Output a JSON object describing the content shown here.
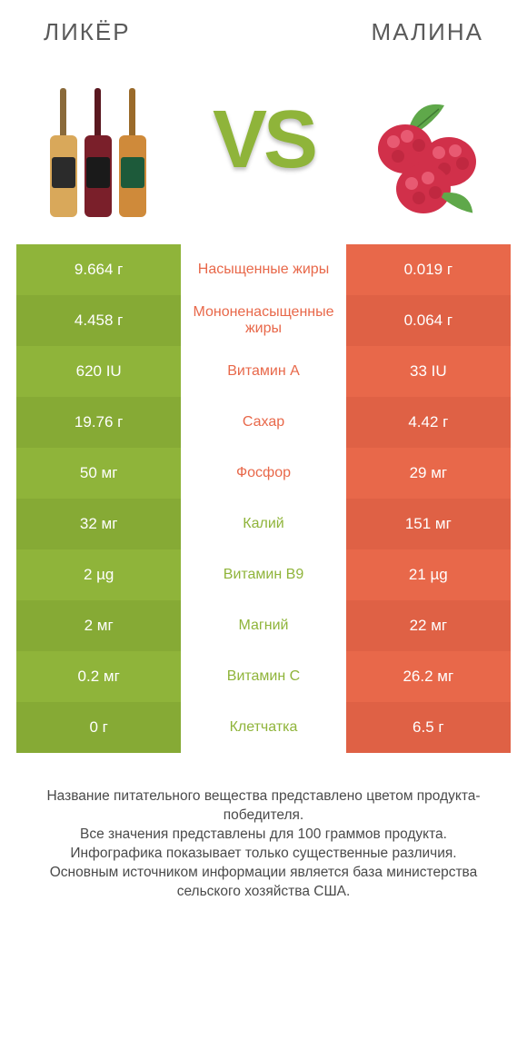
{
  "colors": {
    "left_bg": "#8fb43a",
    "left_bg_alt": "#86aa35",
    "right_bg": "#e8684a",
    "right_bg_alt": "#df6145",
    "mid_left_text": "#e8684a",
    "mid_right_text": "#8fb43a",
    "title_text": "#5a5a5a",
    "vs_text": "#8fb43a",
    "cell_text": "#ffffff",
    "footer_text": "#4a4a4a",
    "bottle1_neck": "#8a6a3a",
    "bottle1_body": "#d9a85a",
    "bottle1_label": "#2b2b2b",
    "bottle2_neck": "#5a1820",
    "bottle2_body": "#7a1f2a",
    "bottle2_label": "#1a1a1a",
    "bottle3_neck": "#9a6a2a",
    "bottle3_body": "#cf8a3a",
    "bottle3_label": "#1d5a3a",
    "raspberry": "#d1304a",
    "raspberry_hi": "#e85a72",
    "leaf": "#5fa84a"
  },
  "left_title": "ЛИКЁР",
  "right_title": "МАЛИНА",
  "vs_label": "VS",
  "rows": [
    {
      "left": "9.664 г",
      "mid": "Насыщенные жиры",
      "right": "0.019 г",
      "winner": "left"
    },
    {
      "left": "4.458 г",
      "mid": "Мононенасыщенные жиры",
      "right": "0.064 г",
      "winner": "left"
    },
    {
      "left": "620 IU",
      "mid": "Витамин A",
      "right": "33 IU",
      "winner": "left"
    },
    {
      "left": "19.76 г",
      "mid": "Сахар",
      "right": "4.42 г",
      "winner": "left"
    },
    {
      "left": "50 мг",
      "mid": "Фосфор",
      "right": "29 мг",
      "winner": "left"
    },
    {
      "left": "32 мг",
      "mid": "Калий",
      "right": "151 мг",
      "winner": "right"
    },
    {
      "left": "2 µg",
      "mid": "Витамин B9",
      "right": "21 µg",
      "winner": "right"
    },
    {
      "left": "2 мг",
      "mid": "Магний",
      "right": "22 мг",
      "winner": "right"
    },
    {
      "left": "0.2 мг",
      "mid": "Витамин C",
      "right": "26.2 мг",
      "winner": "right"
    },
    {
      "left": "0 г",
      "mid": "Клетчатка",
      "right": "6.5 г",
      "winner": "right"
    }
  ],
  "footer": "Название питательного вещества представлено цветом продукта-победителя.\nВсе значения представлены для 100 граммов продукта.\nИнфографика показывает только существенные различия.\nОсновным источником информации является база министерства сельского хозяйства США."
}
